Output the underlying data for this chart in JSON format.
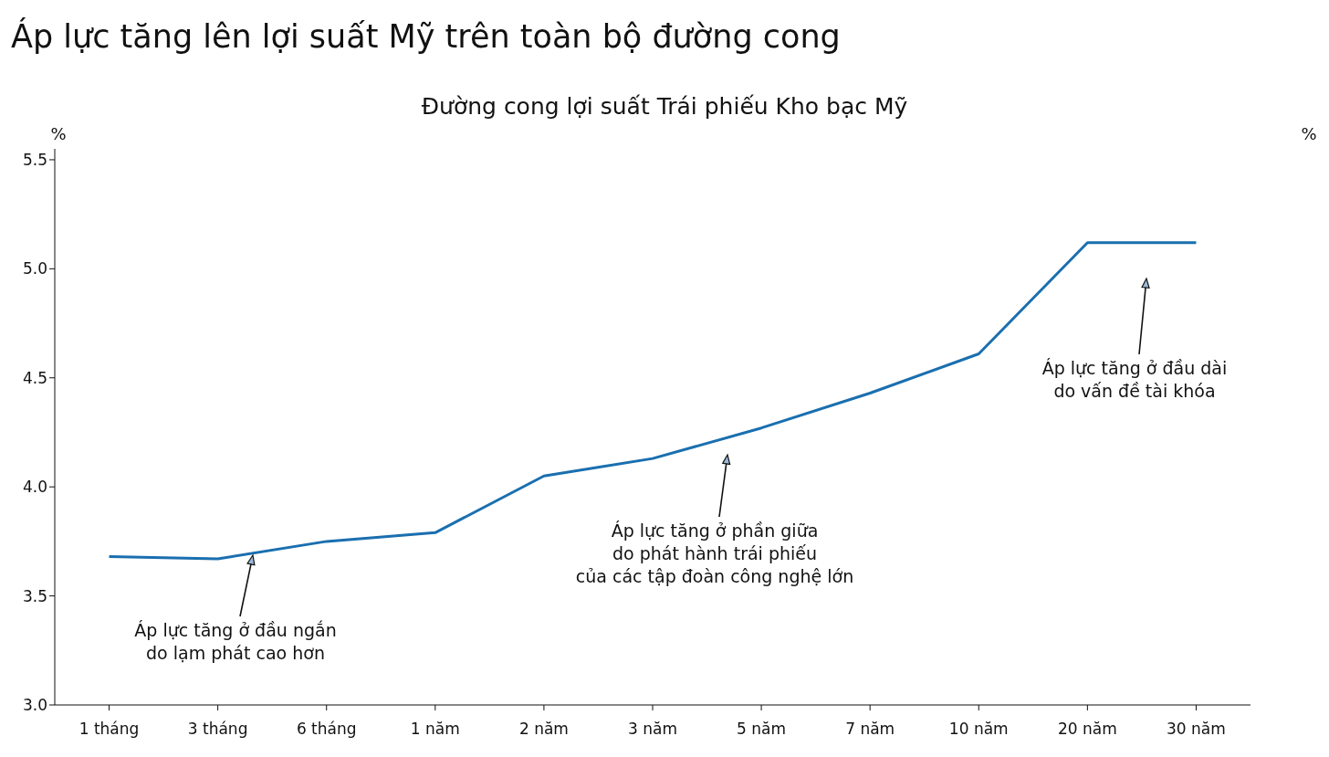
{
  "chart_data": {
    "type": "line",
    "title": "Áp lực tăng lên lợi suất Mỹ trên toàn bộ đường cong",
    "subtitle": "Đường cong lợi suất Trái phiếu Kho bạc Mỹ",
    "ylabel": "%",
    "y2label": "%",
    "categories": [
      "1 tháng",
      "3 tháng",
      "6 tháng",
      "1 năm",
      "2 năm",
      "3 năm",
      "5 năm",
      "7 năm",
      "10 năm",
      "20 năm",
      "30 năm"
    ],
    "series": [
      {
        "color": "#1a6faf",
        "values": [
          3.68,
          3.67,
          3.75,
          3.79,
          4.05,
          4.13,
          4.27,
          4.43,
          4.61,
          5.12,
          5.12
        ]
      }
    ],
    "ylim": [
      3,
      5.55
    ],
    "yticks": [
      {
        "value": 3,
        "label": "3.0"
      },
      3.5,
      {
        "value": 4,
        "label": "4.0"
      },
      4.5,
      {
        "value": 5,
        "label": "5.0"
      },
      5.5
    ],
    "grid": false,
    "legend": false,
    "marker": "none",
    "line_style": "solid",
    "annotations": [
      "Áp lực tăng ở đầu ngắn\ndo lạm phát cao hơn",
      "Áp lực tăng ở phần giữa\ndo phát hành trái phiếu\ncủa các tập đoàn công nghệ lớn",
      "Áp lực tăng ở đầu dài\ndo vấn đề tài khóa"
    ]
  }
}
